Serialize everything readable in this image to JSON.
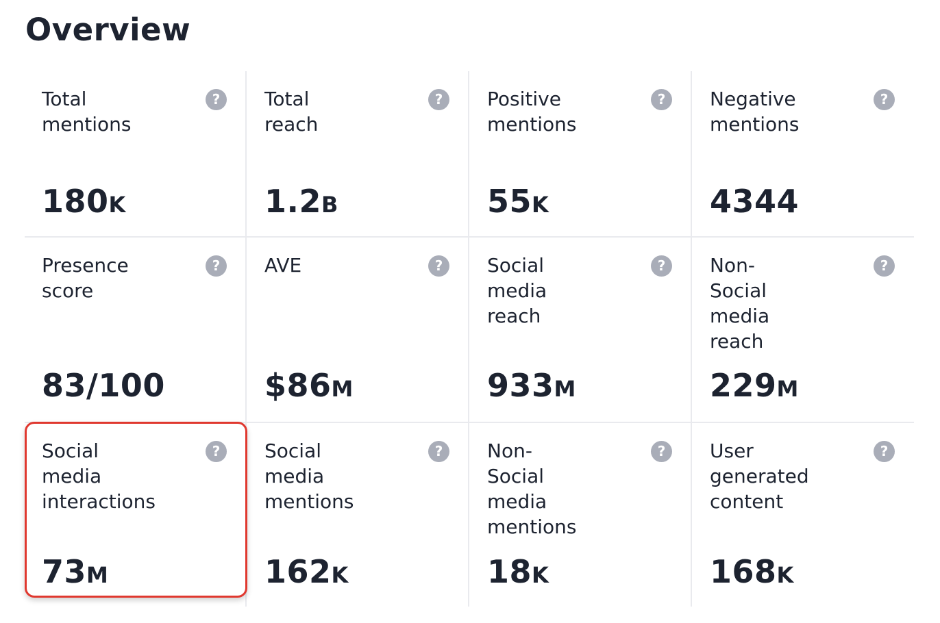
{
  "page": {
    "title": "Overview"
  },
  "help_icon_glyph": "?",
  "colors": {
    "text": "#1d2330",
    "help_icon": "#a9adb8",
    "divider": "#e9eaee",
    "highlight": "#e0382f"
  },
  "cards": [
    {
      "id": "total-mentions",
      "label": "Total\nmentions",
      "value": "180",
      "unit": "K",
      "help_icon": "question-icon"
    },
    {
      "id": "total-reach",
      "label": "Total\nreach",
      "value": "1.2",
      "unit": "B",
      "help_icon": "question-icon"
    },
    {
      "id": "positive-mentions",
      "label": "Positive\nmentions",
      "value": "55",
      "unit": "K",
      "help_icon": "question-icon"
    },
    {
      "id": "negative-mentions",
      "label": "Negative\nmentions",
      "value": "4344",
      "unit": "",
      "help_icon": "question-icon"
    },
    {
      "id": "presence-score",
      "label": "Presence\nscore",
      "value": "83/100",
      "unit": "",
      "help_icon": "question-icon"
    },
    {
      "id": "ave",
      "label": "AVE",
      "value": "$86",
      "unit": "M",
      "help_icon": "question-icon"
    },
    {
      "id": "social-media-reach",
      "label": "Social\nmedia\nreach",
      "value": "933",
      "unit": "M",
      "help_icon": "question-icon"
    },
    {
      "id": "non-social-media-reach",
      "label": "Non-\nSocial\nmedia\nreach",
      "value": "229",
      "unit": "M",
      "help_icon": "question-icon"
    },
    {
      "id": "social-media-interactions",
      "label": "Social\nmedia\ninteractions",
      "value": "73",
      "unit": "M",
      "help_icon": "question-icon",
      "highlighted": true
    },
    {
      "id": "social-media-mentions",
      "label": "Social\nmedia\nmentions",
      "value": "162",
      "unit": "K",
      "help_icon": "question-icon"
    },
    {
      "id": "non-social-media-mentions",
      "label": "Non-\nSocial\nmedia\nmentions",
      "value": "18",
      "unit": "K",
      "help_icon": "question-icon"
    },
    {
      "id": "user-generated-content",
      "label": "User\ngenerated\ncontent",
      "value": "168",
      "unit": "K",
      "help_icon": "question-icon"
    }
  ]
}
